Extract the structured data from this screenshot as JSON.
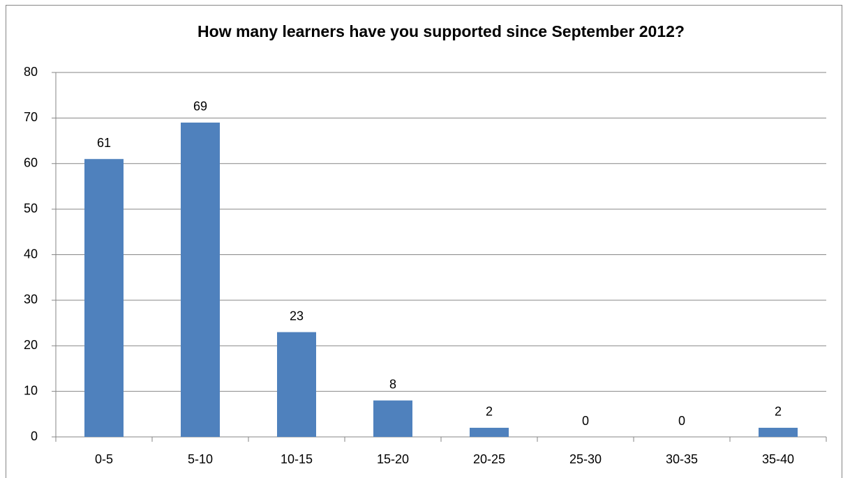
{
  "chart_data": {
    "type": "bar",
    "title": "How many learners have you supported since September 2012?",
    "categories": [
      "0-5",
      "5-10",
      "10-15",
      "15-20",
      "20-25",
      "25-30",
      "30-35",
      "35-40"
    ],
    "values": [
      61,
      69,
      23,
      8,
      2,
      0,
      0,
      2
    ],
    "color": "#4f81bd",
    "ylim": [
      0,
      80
    ],
    "yticks": [
      0,
      10,
      20,
      30,
      40,
      50,
      60,
      70,
      80
    ],
    "grid": true
  }
}
